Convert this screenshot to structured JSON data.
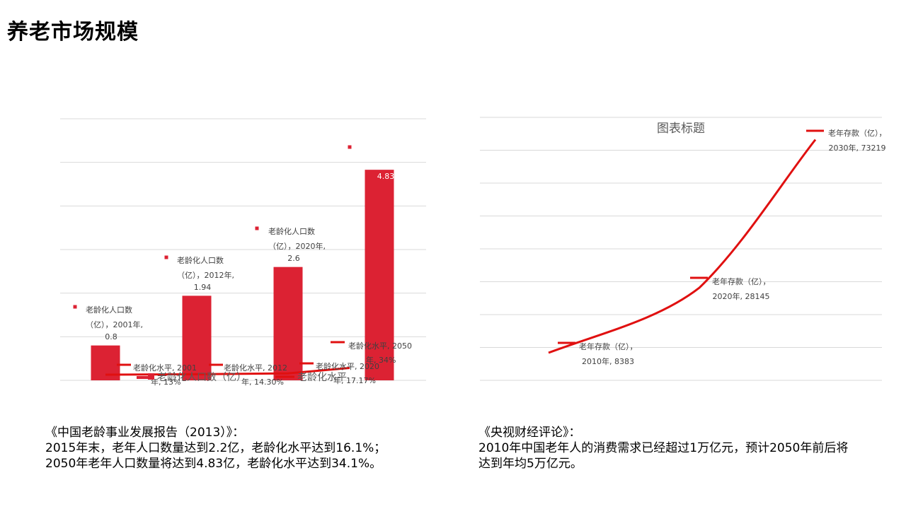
{
  "slide": {
    "title": "养老市场规模"
  },
  "chart_data": [
    {
      "type": "bar",
      "categories": [
        "2001年",
        "2012年",
        "2020年",
        "2050年"
      ],
      "series": [
        {
          "name": "老龄化人口数（亿）",
          "values": [
            0.8,
            1.94,
            2.6,
            4.83
          ],
          "color": "#DC2233"
        },
        {
          "name": "老龄化水平",
          "values": [
            13,
            14.3,
            17.17,
            34
          ],
          "color": "#E01010"
        }
      ],
      "ylim": [
        0,
        6
      ],
      "grid": true,
      "bar_labels": [
        {
          "lines": [
            "老龄化人口数",
            "（亿），2001年,",
            "0.8"
          ]
        },
        {
          "lines": [
            "老龄化人口数",
            "（亿），2012年,",
            "1.94"
          ]
        },
        {
          "lines": [
            "老龄化人口数",
            "（亿），2020年,",
            "2.6"
          ]
        },
        {
          "lines": [
            "",
            "",
            "4.83"
          ]
        }
      ],
      "line_labels": [
        {
          "lines": [
            "老龄化水平, 2001",
            "年, 13%"
          ]
        },
        {
          "lines": [
            "老龄化水平, 2012",
            "年, 14.30%"
          ]
        },
        {
          "lines": [
            "老龄化水平, 2020",
            "年, 17.17%"
          ]
        },
        {
          "lines": [
            "老龄化水平, 2050",
            "年, 34%"
          ]
        }
      ],
      "legend": {
        "placement": "bottom",
        "items": [
          "老龄化人口数（亿）",
          "老龄化水平"
        ]
      }
    },
    {
      "type": "line",
      "title": "图表标题",
      "x": [
        "2010年",
        "2020年",
        "2030年"
      ],
      "series": [
        {
          "name": "老年存款（亿）",
          "values": [
            8383,
            28145,
            73219
          ],
          "color": "#E01010"
        }
      ],
      "ylim": [
        0,
        80000
      ],
      "grid": true,
      "point_labels": [
        {
          "lines": [
            "老年存款（亿），",
            "2010年, 8383"
          ]
        },
        {
          "lines": [
            "老年存款（亿），",
            "2020年, 28145"
          ]
        },
        {
          "lines": [
            "老年存款（亿），",
            "2030年, 73219"
          ]
        }
      ]
    }
  ],
  "captions": {
    "left": [
      "《中国老龄事业发展报告（2013）》：",
      "2015年末，老年人口数量达到2.2亿，老龄化水平达到16.1%；",
      "2050年老年人口数量将达到4.83亿，老龄化水平达到34.1%。"
    ],
    "right": [
      "《央视财经评论》：",
      "2010年中国老年人的消费需求已经超过1万亿元，预计2050年前后将",
      "达到年均5万亿元。"
    ]
  }
}
